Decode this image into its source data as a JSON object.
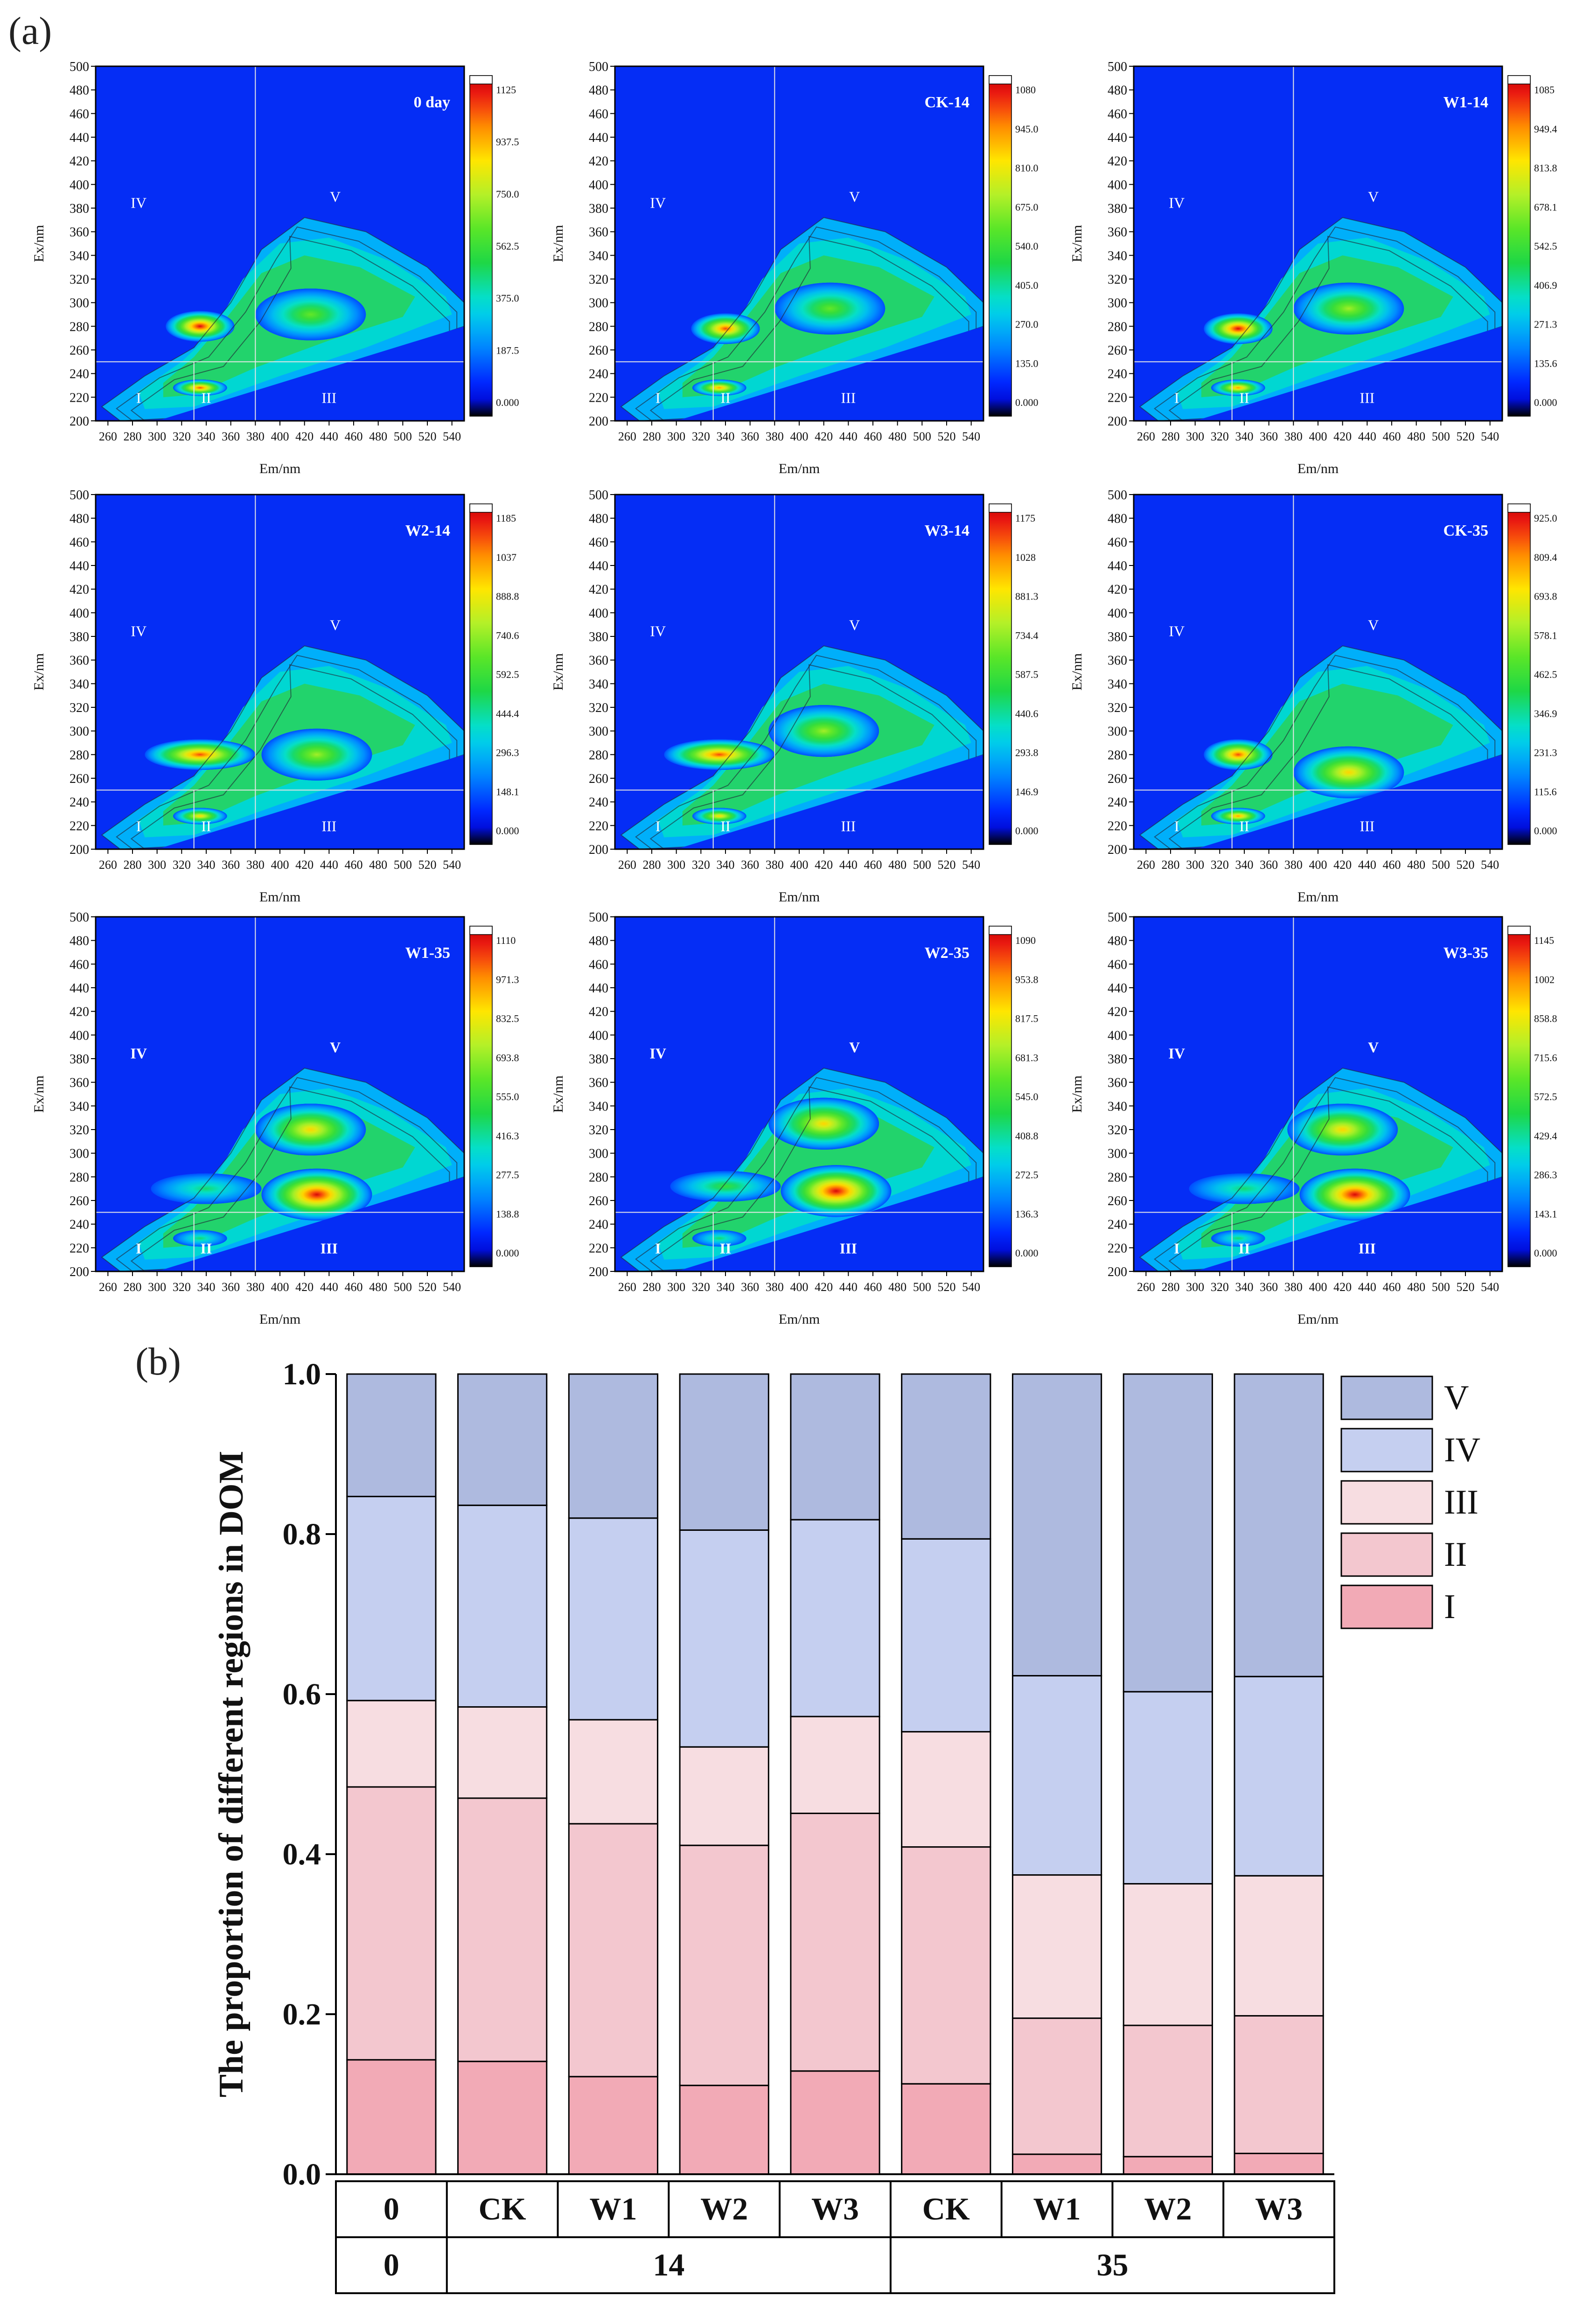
{
  "panel_labels": {
    "a": "(a)",
    "b": "(b)"
  },
  "chart_data": [
    {
      "id": "eem-0day",
      "type": "heatmap",
      "label": "0 day",
      "xlabel": "Em/nm",
      "ylabel": "Ex/nm",
      "xticks": [
        "260",
        "280",
        "300",
        "320",
        "340",
        "360",
        "380",
        "400",
        "420",
        "440",
        "460",
        "480",
        "500",
        "520",
        "540"
      ],
      "yticks": [
        "200",
        "220",
        "240",
        "260",
        "280",
        "300",
        "320",
        "340",
        "360",
        "380",
        "400",
        "420",
        "440",
        "460",
        "480",
        "500"
      ],
      "xlim": [
        250,
        550
      ],
      "ylim": [
        200,
        500
      ],
      "colorbar": [
        "1125",
        "937.5",
        "750.0",
        "562.5",
        "375.0",
        "187.5",
        "0.000"
      ],
      "regions": [
        "I",
        "II",
        "III",
        "IV",
        "V"
      ],
      "boundary_em": 380,
      "boundary_ex": 250,
      "em_split_12": 330,
      "peaks": [
        {
          "em": 335,
          "ex": 280,
          "v": 1.0
        },
        {
          "em": 335,
          "ex": 228,
          "v": 0.95
        },
        {
          "em": 425,
          "ex": 290,
          "v": 0.5
        }
      ]
    },
    {
      "id": "eem-ck14",
      "type": "heatmap",
      "label": "CK-14",
      "xlabel": "Em/nm",
      "ylabel": "Ex/nm",
      "xticks": [
        "260",
        "280",
        "300",
        "320",
        "340",
        "360",
        "380",
        "400",
        "420",
        "440",
        "460",
        "480",
        "500",
        "520",
        "540"
      ],
      "yticks": [
        "200",
        "220",
        "240",
        "260",
        "280",
        "300",
        "320",
        "340",
        "360",
        "380",
        "400",
        "420",
        "440",
        "460",
        "480",
        "500"
      ],
      "xlim": [
        250,
        550
      ],
      "ylim": [
        200,
        500
      ],
      "colorbar": [
        "1080",
        "945.0",
        "810.0",
        "675.0",
        "540.0",
        "405.0",
        "270.0",
        "135.0",
        "0.000"
      ],
      "regions": [
        "I",
        "II",
        "III",
        "IV",
        "V"
      ],
      "boundary_em": 380,
      "boundary_ex": 250,
      "em_split_12": 330,
      "peaks": [
        {
          "em": 340,
          "ex": 278,
          "v": 0.95
        },
        {
          "em": 335,
          "ex": 228,
          "v": 0.85
        },
        {
          "em": 425,
          "ex": 295,
          "v": 0.52
        }
      ]
    },
    {
      "id": "eem-w1-14",
      "type": "heatmap",
      "label": "W1-14",
      "xlabel": "Em/nm",
      "ylabel": "Ex/nm",
      "xticks": [
        "260",
        "280",
        "300",
        "320",
        "340",
        "360",
        "380",
        "400",
        "420",
        "440",
        "460",
        "480",
        "500",
        "520",
        "540"
      ],
      "yticks": [
        "200",
        "220",
        "240",
        "260",
        "280",
        "300",
        "320",
        "340",
        "360",
        "380",
        "400",
        "420",
        "440",
        "460",
        "480",
        "500"
      ],
      "xlim": [
        250,
        550
      ],
      "ylim": [
        200,
        500
      ],
      "colorbar": [
        "1085",
        "949.4",
        "813.8",
        "678.1",
        "542.5",
        "406.9",
        "271.3",
        "135.6",
        "0.000"
      ],
      "regions": [
        "I",
        "II",
        "III",
        "IV",
        "V"
      ],
      "boundary_em": 380,
      "boundary_ex": 250,
      "em_split_12": 330,
      "peaks": [
        {
          "em": 335,
          "ex": 278,
          "v": 1.0
        },
        {
          "em": 335,
          "ex": 228,
          "v": 0.85
        },
        {
          "em": 425,
          "ex": 295,
          "v": 0.55
        }
      ]
    },
    {
      "id": "eem-w2-14",
      "type": "heatmap",
      "label": "W2-14",
      "xlabel": "Em/nm",
      "ylabel": "Ex/nm",
      "xticks": [
        "260",
        "280",
        "300",
        "320",
        "340",
        "360",
        "380",
        "400",
        "420",
        "440",
        "460",
        "480",
        "500",
        "520",
        "540"
      ],
      "yticks": [
        "200",
        "220",
        "240",
        "260",
        "280",
        "300",
        "320",
        "340",
        "360",
        "380",
        "400",
        "420",
        "440",
        "460",
        "480",
        "500"
      ],
      "xlim": [
        250,
        550
      ],
      "ylim": [
        200,
        500
      ],
      "colorbar": [
        "1185",
        "1037",
        "888.8",
        "740.6",
        "592.5",
        "444.4",
        "296.3",
        "148.1",
        "0.000"
      ],
      "regions": [
        "I",
        "II",
        "III",
        "IV",
        "V"
      ],
      "boundary_em": 380,
      "boundary_ex": 250,
      "em_split_12": 330,
      "peaks": [
        {
          "em": 335,
          "ex": 280,
          "v": 0.9
        },
        {
          "em": 335,
          "ex": 228,
          "v": 0.75
        },
        {
          "em": 430,
          "ex": 280,
          "v": 0.6
        }
      ]
    },
    {
      "id": "eem-w3-14",
      "type": "heatmap",
      "label": "W3-14",
      "xlabel": "Em/nm",
      "ylabel": "Ex/nm",
      "xticks": [
        "260",
        "280",
        "300",
        "320",
        "340",
        "360",
        "380",
        "400",
        "420",
        "440",
        "460",
        "480",
        "500",
        "520",
        "540"
      ],
      "yticks": [
        "200",
        "220",
        "240",
        "260",
        "280",
        "300",
        "320",
        "340",
        "360",
        "380",
        "400",
        "420",
        "440",
        "460",
        "480",
        "500"
      ],
      "xlim": [
        250,
        550
      ],
      "ylim": [
        200,
        500
      ],
      "colorbar": [
        "1175",
        "1028",
        "881.3",
        "734.4",
        "587.5",
        "440.6",
        "293.8",
        "146.9",
        "0.000"
      ],
      "regions": [
        "I",
        "II",
        "III",
        "IV",
        "V"
      ],
      "boundary_em": 380,
      "boundary_ex": 250,
      "em_split_12": 330,
      "peaks": [
        {
          "em": 335,
          "ex": 280,
          "v": 0.88
        },
        {
          "em": 335,
          "ex": 228,
          "v": 0.75
        },
        {
          "em": 420,
          "ex": 300,
          "v": 0.6
        }
      ]
    },
    {
      "id": "eem-ck35",
      "type": "heatmap",
      "label": "CK-35",
      "xlabel": "Em/nm",
      "ylabel": "Ex/nm",
      "xticks": [
        "260",
        "280",
        "300",
        "320",
        "340",
        "360",
        "380",
        "400",
        "420",
        "440",
        "460",
        "480",
        "500",
        "520",
        "540"
      ],
      "yticks": [
        "200",
        "220",
        "240",
        "260",
        "280",
        "300",
        "320",
        "340",
        "360",
        "380",
        "400",
        "420",
        "440",
        "460",
        "480",
        "500"
      ],
      "xlim": [
        250,
        550
      ],
      "ylim": [
        200,
        500
      ],
      "colorbar": [
        "925.0",
        "809.4",
        "693.8",
        "578.1",
        "462.5",
        "346.9",
        "231.3",
        "115.6",
        "0.000"
      ],
      "regions": [
        "I",
        "II",
        "III",
        "IV",
        "V"
      ],
      "boundary_em": 380,
      "boundary_ex": 250,
      "em_split_12": 330,
      "peaks": [
        {
          "em": 335,
          "ex": 280,
          "v": 0.95
        },
        {
          "em": 335,
          "ex": 228,
          "v": 0.85
        },
        {
          "em": 425,
          "ex": 265,
          "v": 0.72
        }
      ]
    },
    {
      "id": "eem-w1-35",
      "type": "heatmap",
      "label": "W1-35",
      "xlabel": "Em/nm",
      "ylabel": "Ex/nm",
      "xticks": [
        "260",
        "280",
        "300",
        "320",
        "340",
        "360",
        "380",
        "400",
        "420",
        "440",
        "460",
        "480",
        "500",
        "520",
        "540"
      ],
      "yticks": [
        "200",
        "220",
        "240",
        "260",
        "280",
        "300",
        "320",
        "340",
        "360",
        "380",
        "400",
        "420",
        "440",
        "460",
        "480",
        "500"
      ],
      "xlim": [
        250,
        550
      ],
      "ylim": [
        200,
        500
      ],
      "colorbar": [
        "1110",
        "971.3",
        "832.5",
        "693.8",
        "555.0",
        "416.3",
        "277.5",
        "138.8",
        "0.000"
      ],
      "regions": [
        "I",
        "II",
        "III",
        "IV",
        "V"
      ],
      "boundary_em": 380,
      "boundary_ex": 250,
      "em_split_12": 330,
      "peaks": [
        {
          "em": 430,
          "ex": 265,
          "v": 1.0
        },
        {
          "em": 425,
          "ex": 320,
          "v": 0.72
        },
        {
          "em": 340,
          "ex": 270,
          "v": 0.35
        },
        {
          "em": 335,
          "ex": 228,
          "v": 0.3
        }
      ]
    },
    {
      "id": "eem-w2-35",
      "type": "heatmap",
      "label": "W2-35",
      "xlabel": "Em/nm",
      "ylabel": "Ex/nm",
      "xticks": [
        "260",
        "280",
        "300",
        "320",
        "340",
        "360",
        "380",
        "400",
        "420",
        "440",
        "460",
        "480",
        "500",
        "520",
        "540"
      ],
      "yticks": [
        "200",
        "220",
        "240",
        "260",
        "280",
        "300",
        "320",
        "340",
        "360",
        "380",
        "400",
        "420",
        "440",
        "460",
        "480",
        "500"
      ],
      "xlim": [
        250,
        550
      ],
      "ylim": [
        200,
        500
      ],
      "colorbar": [
        "1090",
        "953.8",
        "817.5",
        "681.3",
        "545.0",
        "408.8",
        "272.5",
        "136.3",
        "0.000"
      ],
      "regions": [
        "I",
        "II",
        "III",
        "IV",
        "V"
      ],
      "boundary_em": 380,
      "boundary_ex": 250,
      "em_split_12": 330,
      "peaks": [
        {
          "em": 430,
          "ex": 268,
          "v": 1.0
        },
        {
          "em": 420,
          "ex": 325,
          "v": 0.75
        },
        {
          "em": 340,
          "ex": 272,
          "v": 0.45
        },
        {
          "em": 335,
          "ex": 228,
          "v": 0.3
        }
      ]
    },
    {
      "id": "eem-w3-35",
      "type": "heatmap",
      "label": "W3-35",
      "xlabel": "Em/nm",
      "ylabel": "Ex/nm",
      "xticks": [
        "260",
        "280",
        "300",
        "320",
        "340",
        "360",
        "380",
        "400",
        "420",
        "440",
        "460",
        "480",
        "500",
        "520",
        "540"
      ],
      "yticks": [
        "200",
        "220",
        "240",
        "260",
        "280",
        "300",
        "320",
        "340",
        "360",
        "380",
        "400",
        "420",
        "440",
        "460",
        "480",
        "500"
      ],
      "xlim": [
        250,
        550
      ],
      "ylim": [
        200,
        500
      ],
      "colorbar": [
        "1145",
        "1002",
        "858.8",
        "715.6",
        "572.5",
        "429.4",
        "286.3",
        "143.1",
        "0.000"
      ],
      "regions": [
        "I",
        "II",
        "III",
        "IV",
        "V"
      ],
      "boundary_em": 380,
      "boundary_ex": 250,
      "em_split_12": 330,
      "peaks": [
        {
          "em": 430,
          "ex": 265,
          "v": 1.0
        },
        {
          "em": 420,
          "ex": 320,
          "v": 0.78
        },
        {
          "em": 340,
          "ex": 270,
          "v": 0.35
        },
        {
          "em": 335,
          "ex": 228,
          "v": 0.3
        }
      ]
    },
    {
      "id": "stacked-proportion",
      "type": "bar",
      "stacked": true,
      "ylabel": "The proportion of different regions in DOM",
      "ylim": [
        0,
        1.0
      ],
      "yticks": [
        "0.0",
        "0.2",
        "0.4",
        "0.6",
        "0.8",
        "1.0"
      ],
      "categories": [
        "0",
        "CK",
        "W1",
        "W2",
        "W3",
        "CK",
        "W1",
        "W2",
        "W3"
      ],
      "groups": [
        {
          "label": "0",
          "span": 1
        },
        {
          "label": "14",
          "span": 4
        },
        {
          "label": "35",
          "span": 4
        }
      ],
      "series": [
        {
          "name": "I",
          "color": "#f2aab6",
          "values": [
            0.143,
            0.141,
            0.122,
            0.111,
            0.129,
            0.113,
            0.025,
            0.022,
            0.026
          ]
        },
        {
          "name": "II",
          "color": "#f3c7cf",
          "values": [
            0.341,
            0.329,
            0.316,
            0.3,
            0.322,
            0.296,
            0.17,
            0.164,
            0.172
          ]
        },
        {
          "name": "III",
          "color": "#f7dde1",
          "values": [
            0.108,
            0.114,
            0.13,
            0.123,
            0.121,
            0.144,
            0.179,
            0.177,
            0.175
          ]
        },
        {
          "name": "IV",
          "color": "#c5cff0",
          "values": [
            0.255,
            0.252,
            0.252,
            0.271,
            0.246,
            0.241,
            0.249,
            0.24,
            0.249
          ]
        },
        {
          "name": "V",
          "color": "#aebadf",
          "values": [
            0.153,
            0.164,
            0.18,
            0.195,
            0.182,
            0.206,
            0.377,
            0.397,
            0.378
          ]
        }
      ],
      "legend_order": [
        "V",
        "IV",
        "III",
        "II",
        "I"
      ]
    }
  ]
}
